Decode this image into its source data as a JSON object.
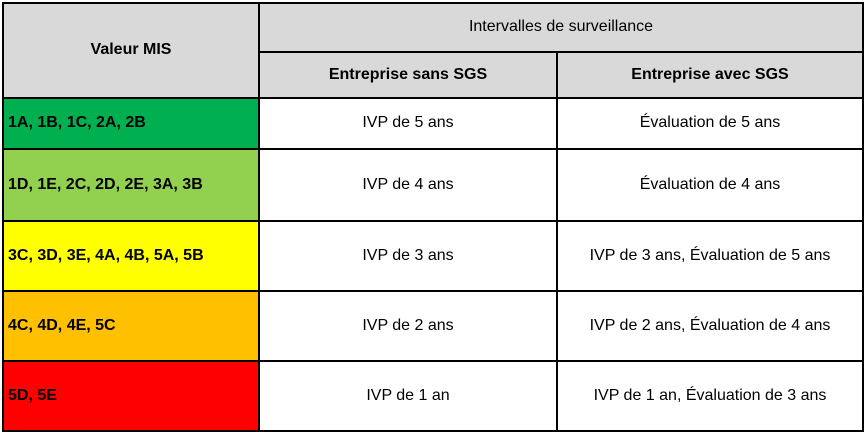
{
  "table": {
    "header": {
      "valeur_mis": "Valeur MIS",
      "intervalles": "Intervalles de surveillance",
      "sans_sgs": "Entreprise sans SGS",
      "avec_sgs": "Entreprise avec SGS"
    },
    "rows": [
      {
        "mis": "1A, 1B, 1C, 2A, 2B",
        "color": "#00B050",
        "sans": "IVP de 5 ans",
        "avec": "Évaluation de 5 ans"
      },
      {
        "mis": "1D, 1E, 2C, 2D, 2E, 3A, 3B",
        "color": "#92D050",
        "sans": "IVP de 4 ans",
        "avec": "Évaluation de 4 ans"
      },
      {
        "mis": "3C, 3D, 3E, 4A, 4B, 5A, 5B",
        "color": "#FFFF00",
        "sans": "IVP de 3 ans",
        "avec": "IVP de 3 ans, Évaluation de 5 ans"
      },
      {
        "mis": "4C, 4D, 4E, 5C",
        "color": "#FFC000",
        "sans": "IVP de 2 ans",
        "avec": "IVP de 2 ans, Évaluation de 4 ans"
      },
      {
        "mis": "5D, 5E",
        "color": "#FF0000",
        "sans": "IVP de 1 an",
        "avec": "IVP de 1 an, Évaluation de 3 ans"
      }
    ],
    "colors": {
      "header_bg": "#D9D9D9",
      "border": "#000000"
    }
  }
}
